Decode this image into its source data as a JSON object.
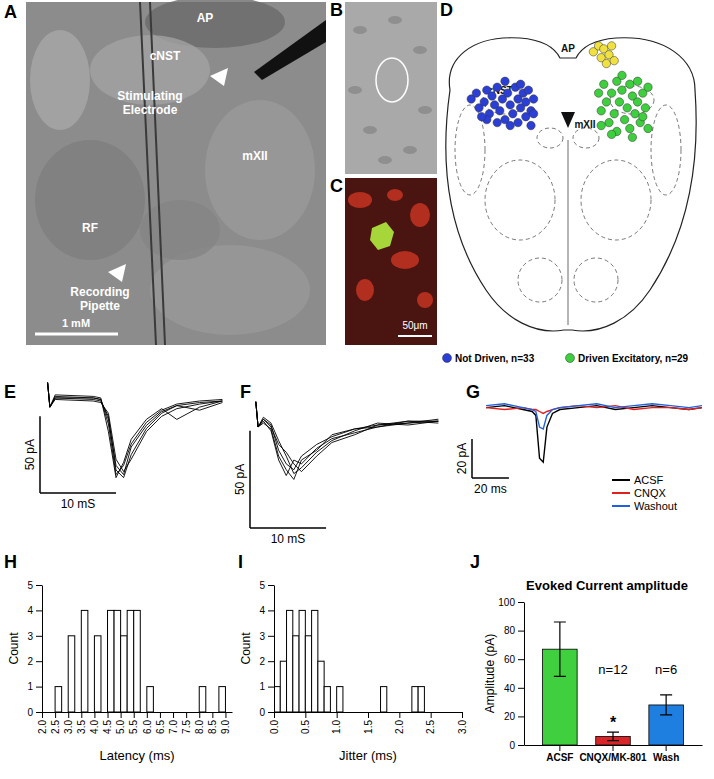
{
  "figure_labels": [
    "A",
    "B",
    "C",
    "D",
    "E",
    "F",
    "G",
    "H",
    "I",
    "J"
  ],
  "panel_a": {
    "labels": [
      "AP",
      "cNST",
      "mXII",
      "RF"
    ],
    "stimulating_electrode": [
      "Stimulating",
      "Electrode"
    ],
    "recording_pipette": [
      "Recording",
      "Pipette"
    ],
    "scale_bar": "1 mM"
  },
  "panel_c": {
    "scale_bar": "50μm"
  },
  "panel_d": {
    "labels": [
      "cNST",
      "AP",
      "mXII"
    ],
    "xlim": [
      0,
      100
    ],
    "ylim": [
      0,
      100
    ],
    "groups": [
      {
        "name": "Not Driven, n=33",
        "color": "#2b3fd6",
        "x": [
          12,
          14,
          15,
          17,
          18,
          19,
          20,
          21,
          22,
          23,
          24,
          25,
          26,
          27,
          28,
          29,
          30,
          30,
          31,
          32,
          33,
          33,
          34,
          35,
          35,
          36,
          27,
          22,
          18,
          25,
          31,
          36,
          16
        ],
        "y": [
          20,
          18,
          23,
          21,
          17,
          25,
          19,
          22,
          16,
          24,
          20,
          27,
          18,
          22,
          25,
          16,
          20,
          28,
          23,
          18,
          26,
          21,
          17,
          24,
          29,
          20,
          29,
          28,
          27,
          14,
          15,
          25,
          26
        ]
      },
      {
        "name": "Driven Excitatory, n=29",
        "color": "#3ecf3e",
        "x": [
          61,
          62,
          63,
          64,
          65,
          66,
          67,
          68,
          68,
          69,
          70,
          71,
          72,
          73,
          73,
          74,
          75,
          76,
          76,
          77,
          78,
          79,
          80,
          80,
          62,
          66,
          70,
          74,
          78
        ],
        "y": [
          18,
          24,
          15,
          21,
          28,
          18,
          25,
          14,
          31,
          21,
          17,
          27,
          23,
          15,
          30,
          19,
          25,
          21,
          14,
          28,
          18,
          23,
          16,
          30,
          29,
          32,
          12,
          33,
          26
        ]
      },
      {
        "color": "#f0e040",
        "x": [
          59,
          61,
          62,
          63,
          64,
          65,
          66,
          67
        ],
        "y": [
          4,
          2,
          6,
          3,
          8,
          5,
          2,
          7
        ]
      }
    ]
  },
  "chart_data": [
    {
      "type": "line",
      "tick_labels": false,
      "xlim": [
        -1,
        24
      ],
      "ylim": [
        -60,
        15
      ],
      "x": [
        0,
        0.3,
        1,
        6,
        7,
        8,
        9,
        10,
        11,
        13,
        15,
        17,
        20,
        23
      ],
      "scale_bars": {
        "x": {
          "value": 10,
          "label": "10 mS"
        },
        "y": {
          "value": 50,
          "label": "50 pA"
        }
      },
      "series": [
        {
          "color": "#000000",
          "values": [
            12,
            -4,
            2,
            1,
            0,
            -10,
            -45,
            -50,
            -35,
            -18,
            -8,
            -3,
            -1,
            0
          ]
        },
        {
          "color": "#000000",
          "values": [
            12,
            -4,
            3,
            2,
            1,
            -15,
            -48,
            -42,
            -28,
            -14,
            -6,
            -2,
            0,
            1
          ]
        },
        {
          "color": "#000000",
          "values": [
            12,
            -4,
            1,
            0,
            -1,
            -8,
            -38,
            -46,
            -38,
            -20,
            -10,
            -5,
            -2,
            0
          ]
        },
        {
          "color": "#000000",
          "values": [
            12,
            -4,
            4,
            3,
            2,
            -20,
            -50,
            -40,
            -25,
            -12,
            -5,
            -12,
            -4,
            0
          ]
        },
        {
          "color": "#000000",
          "values": [
            12,
            -4,
            2,
            2,
            1,
            -12,
            -42,
            -48,
            -30,
            -16,
            -7,
            -3,
            -6,
            -1
          ]
        }
      ]
    },
    {
      "type": "line",
      "tick_labels": false,
      "xlim": [
        -0.5,
        27.5
      ],
      "ylim": [
        -55,
        15
      ],
      "x": [
        0,
        0.3,
        1,
        2,
        3,
        4,
        5,
        6,
        8,
        10,
        13,
        16,
        20,
        24
      ],
      "scale_bars": {
        "x": {
          "value": 10,
          "label": "10 mS"
        },
        "y": {
          "value": 50,
          "label": "50 pA"
        }
      },
      "series": [
        {
          "color": "#000000",
          "values": [
            10,
            -3,
            1,
            -2,
            -15,
            -22,
            -25,
            -18,
            -12,
            -8,
            -4,
            -2,
            -1,
            0
          ]
        },
        {
          "color": "#000000",
          "values": [
            10,
            -3,
            0,
            -5,
            -20,
            -28,
            -20,
            -22,
            -14,
            -9,
            -6,
            -3,
            0,
            -1
          ]
        },
        {
          "color": "#000000",
          "values": [
            10,
            -3,
            2,
            -1,
            -10,
            -18,
            -27,
            -24,
            -16,
            -10,
            -5,
            -1,
            -2,
            0
          ]
        },
        {
          "color": "#000000",
          "values": [
            10,
            -3,
            -1,
            -4,
            -18,
            -25,
            -30,
            -20,
            -15,
            -7,
            -4,
            -3,
            -1,
            1
          ]
        },
        {
          "color": "#000000",
          "values": [
            10,
            -3,
            1,
            -3,
            -12,
            -16,
            -22,
            -26,
            -18,
            -11,
            -7,
            -2,
            0,
            0
          ]
        }
      ]
    },
    {
      "type": "line",
      "tick_labels": false,
      "legend": "lower right",
      "xlim": [
        0,
        117
      ],
      "ylim": [
        -32,
        8
      ],
      "x": [
        0,
        10,
        20,
        25,
        27,
        29,
        31,
        33,
        36,
        40,
        50,
        60,
        70,
        80,
        90,
        100,
        110,
        117
      ],
      "scale_bars": {
        "x": {
          "value": 20,
          "label": "20 ms"
        },
        "y": {
          "value": 20,
          "label": "20 pA"
        }
      },
      "series": [
        {
          "name": "ACSF",
          "color": "#000000",
          "values": [
            0,
            1,
            -1,
            -2,
            -4,
            -26,
            -28,
            -10,
            -3,
            -1,
            0,
            1,
            -1,
            0,
            1,
            0,
            -1,
            0
          ]
        },
        {
          "name": "CNQX",
          "color": "#e02020",
          "values": [
            0,
            -1,
            0,
            -1,
            -1,
            -2,
            -3,
            -2,
            -1,
            0,
            1,
            0,
            1,
            -1,
            0,
            0,
            -1,
            0
          ]
        },
        {
          "name": "Washout",
          "color": "#2060e0",
          "values": [
            1,
            2,
            0,
            -1,
            -2,
            -10,
            -11,
            -4,
            -1,
            0,
            1,
            2,
            0,
            1,
            2,
            1,
            0,
            1
          ]
        }
      ]
    },
    {
      "type": "histogram",
      "x_label": "Latency (ms)",
      "y_label": "Count",
      "color": "#ffffff",
      "bins": [
        2,
        2.25,
        2.5,
        2.75,
        3,
        3.25,
        3.5,
        3.75,
        4,
        4.25,
        4.5,
        4.75,
        5,
        5.25,
        5.5,
        5.75,
        6,
        6.25,
        6.5,
        6.75,
        7,
        7.25,
        7.5,
        7.75,
        8,
        8.25,
        8.5,
        8.75,
        9
      ],
      "values": [
        0,
        0,
        1,
        0,
        3,
        0,
        4,
        0,
        3,
        0,
        4,
        4,
        3,
        4,
        4,
        0,
        1,
        0,
        0,
        0,
        0,
        0,
        0,
        0,
        1,
        0,
        0,
        1
      ],
      "xlim": [
        2,
        9.25
      ],
      "ylim": [
        0,
        5
      ],
      "xticks": [
        {
          "value": 2,
          "label": "2.0"
        },
        2.5,
        {
          "value": 3,
          "label": "3.0"
        },
        3.5,
        {
          "value": 4,
          "label": "4.0"
        },
        4.5,
        {
          "value": 5,
          "label": "5.0"
        },
        5.5,
        {
          "value": 6,
          "label": "6.0"
        },
        6.5,
        {
          "value": 7,
          "label": "7.0"
        },
        7.5,
        {
          "value": 8,
          "label": "8.0"
        },
        8.5,
        {
          "value": 9,
          "label": "9.0"
        }
      ],
      "yticks": [
        0,
        1,
        2,
        3,
        4,
        5
      ]
    },
    {
      "type": "histogram",
      "x_label": "Jitter (ms)",
      "y_label": "Count",
      "color": "#ffffff",
      "bins": [
        0,
        0.1,
        0.2,
        0.3,
        0.4,
        0.5,
        0.6,
        0.7,
        0.8,
        0.9,
        1,
        1.1,
        1.2,
        1.3,
        1.4,
        1.5,
        1.6,
        1.7,
        1.8,
        1.9,
        2,
        2.1,
        2.2,
        2.3,
        2.4,
        2.5,
        2.6,
        2.7,
        2.8,
        2.9,
        3
      ],
      "values": [
        1,
        2,
        4,
        3,
        4,
        3,
        4,
        2,
        1,
        0,
        1,
        0,
        0,
        0,
        0,
        0,
        0,
        1,
        0,
        0,
        0,
        0,
        1,
        1,
        0,
        0,
        0,
        0,
        0,
        0
      ],
      "xlim": [
        0,
        3
      ],
      "ylim": [
        0,
        5
      ],
      "xticks": [
        {
          "value": 0,
          "label": "0.0"
        },
        0.5,
        {
          "value": 1,
          "label": "1.0"
        },
        1.5,
        {
          "value": 2,
          "label": "2.0"
        },
        2.5,
        {
          "value": 3,
          "label": "3.0"
        }
      ],
      "yticks": [
        0,
        1,
        2,
        3,
        4,
        5
      ]
    },
    {
      "type": "bar",
      "title": "Evoked Current amplitude",
      "y_label": "Amplitude (pA)",
      "categories": [
        "ACSF",
        "CNQX/MK-801",
        "Wash"
      ],
      "values": [
        67,
        6,
        28
      ],
      "errors": [
        19,
        3,
        7
      ],
      "colors": [
        "#3fcf3f",
        "#d8252a",
        "#1f7fe0"
      ],
      "ylim": [
        0,
        100
      ],
      "yticks": [
        0,
        20,
        40,
        60,
        80,
        100
      ],
      "annotations": [
        {
          "text": "n=12",
          "category": 1
        },
        {
          "text": "n=6",
          "category": 2
        },
        {
          "text": "*",
          "category": 1
        }
      ]
    }
  ]
}
